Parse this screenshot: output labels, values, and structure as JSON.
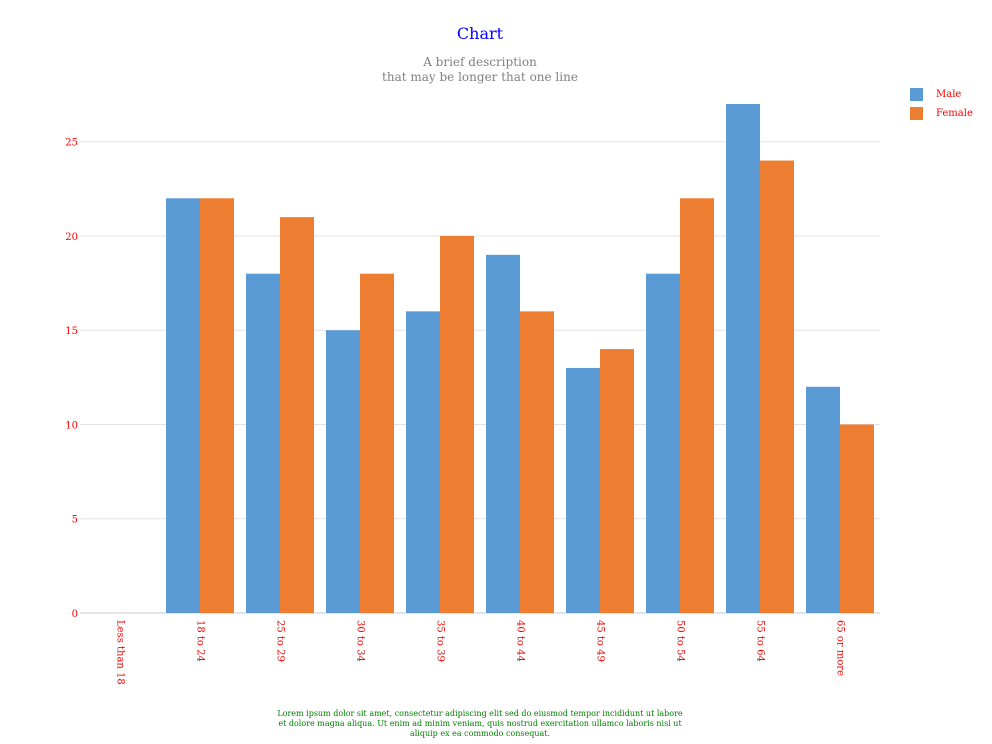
{
  "chart_data": {
    "type": "bar",
    "title": "Chart",
    "subtitle": [
      "A brief description",
      "that may be longer that one line"
    ],
    "categories": [
      "Less than 18",
      "18 to 24",
      "25 to 29",
      "30 to 34",
      "35 to 39",
      "40 to 44",
      "45 to 49",
      "50 to 54",
      "55 to 64",
      "65 or more"
    ],
    "series": [
      {
        "name": "Male",
        "color": "#5b9bd5",
        "values": [
          0,
          22,
          18,
          15,
          16,
          19,
          13,
          18,
          27,
          12
        ]
      },
      {
        "name": "Female",
        "color": "#ed7d31",
        "values": [
          0,
          22,
          21,
          18,
          20,
          16,
          14,
          22,
          24,
          10
        ]
      }
    ],
    "yticks": [
      0,
      5,
      10,
      15,
      20,
      25
    ],
    "ylim": [
      0,
      27
    ],
    "grid": true,
    "legend_position": "top-right",
    "footer": [
      "Lorem ipsum dolor sit amet, consectetur adipiscing elit sed do eiusmod tempor incididunt ut labore",
      "et dolore magna aliqua. Ut enim ad minim veniam, quis nostrud exercitation ullamco laboris nisi ut",
      "aliquip ex ea commodo consequat."
    ]
  }
}
